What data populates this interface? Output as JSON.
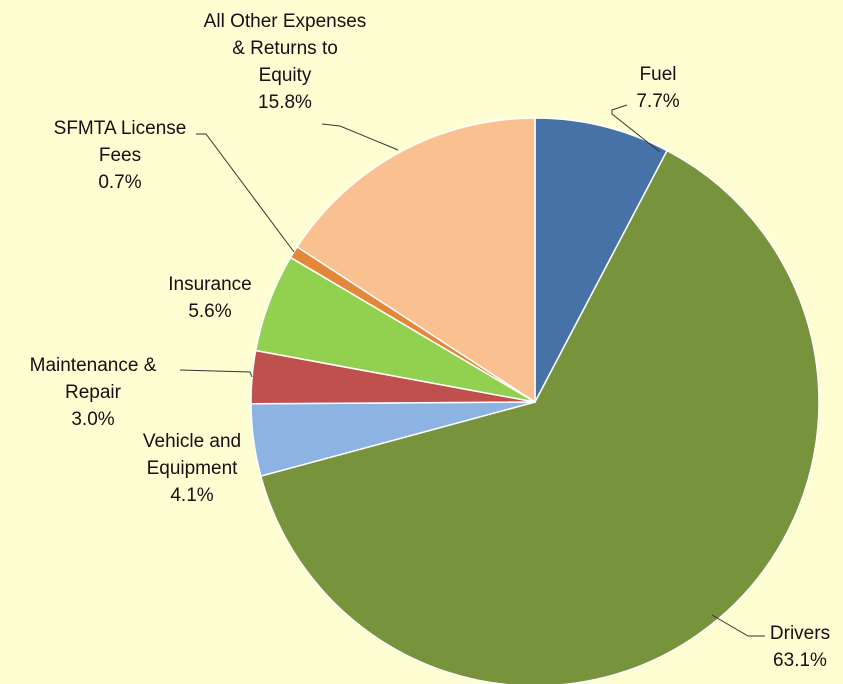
{
  "chart_data": {
    "type": "pie",
    "categories": [
      "Fuel",
      "Drivers",
      "Vehicle and\nEquipment",
      "Maintenance &\nRepair",
      "Insurance",
      "SFMTA License\nFees",
      "All Other Expenses\n& Returns to\nEquity"
    ],
    "values": [
      7.7,
      63.1,
      4.1,
      3.0,
      5.6,
      0.7,
      15.8
    ],
    "value_labels": [
      "7.7%",
      "63.1%",
      "4.1%",
      "3.0%",
      "5.6%",
      "0.7%",
      "15.8%"
    ],
    "colors": [
      "#4672a8",
      "#77933c",
      "#8db3e2",
      "#c0504d",
      "#92d050",
      "#e4873a",
      "#fac090"
    ]
  }
}
